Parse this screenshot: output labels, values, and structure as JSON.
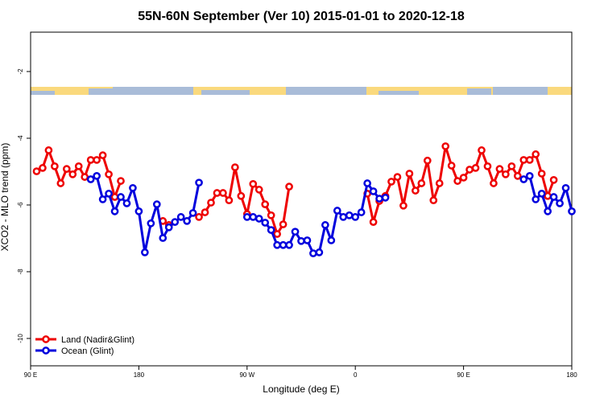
{
  "chart_data": {
    "type": "line",
    "title": "55N-60N September (Ver 10)   2015-01-01 to 2020-12-18",
    "x_label": "Longitude (deg E)",
    "y_label": "XCO2 - MLO trend (ppm)",
    "x": [
      95,
      100,
      105,
      110,
      115,
      120,
      125,
      130,
      135,
      140,
      145,
      150,
      155,
      160,
      165,
      170,
      175,
      180,
      185,
      190,
      195,
      200,
      205,
      210,
      215,
      220,
      225,
      230,
      235,
      240,
      245,
      250,
      255,
      260,
      265,
      270,
      275,
      280,
      285,
      290,
      295,
      300,
      305,
      310,
      315,
      320,
      325,
      330,
      335,
      340,
      345,
      350,
      355,
      360,
      365,
      370,
      375,
      380,
      385,
      390,
      395,
      400,
      405,
      410,
      415,
      420,
      425,
      430,
      435,
      440,
      445,
      450,
      455,
      460,
      465,
      470,
      475,
      480,
      485,
      490,
      495,
      500,
      505,
      510,
      515,
      520,
      525,
      530,
      535,
      540
    ],
    "series": [
      {
        "name": "Land (Nadir&Glint)",
        "color": "#ee0000",
        "values": [
          -4.99,
          -4.89,
          -4.36,
          -4.84,
          -5.35,
          -4.92,
          -5.08,
          -4.84,
          -5.16,
          -4.65,
          -4.65,
          -4.51,
          -5.08,
          -5.76,
          -5.28,
          null,
          null,
          null,
          null,
          null,
          null,
          -6.48,
          -6.6,
          null,
          null,
          null,
          null,
          -6.36,
          -6.22,
          -5.93,
          -5.64,
          -5.64,
          -5.86,
          -4.87,
          -5.73,
          -6.27,
          -5.37,
          -5.54,
          -5.98,
          -6.31,
          -6.87,
          -6.58,
          -5.45,
          null,
          null,
          null,
          null,
          null,
          null,
          null,
          null,
          null,
          null,
          null,
          null,
          -5.66,
          -6.51,
          -5.88,
          -5.73,
          -5.3,
          -5.16,
          -6.02,
          -5.06,
          -5.57,
          -5.35,
          -4.67,
          -5.86,
          -5.35,
          -4.24,
          -4.82,
          -5.28,
          -5.18,
          -4.94,
          -4.89,
          -4.36,
          -4.84,
          -5.35,
          -4.92,
          -5.08,
          -4.84,
          -5.13,
          -4.65,
          -4.65,
          -4.48,
          -5.06,
          -5.73,
          -5.25,
          null,
          null,
          null
        ]
      },
      {
        "name": "Ocean (Glint)",
        "color": "#0000dd",
        "values": [
          null,
          null,
          null,
          null,
          null,
          null,
          null,
          null,
          null,
          -5.23,
          -5.13,
          -5.83,
          -5.66,
          -6.19,
          -5.76,
          -5.95,
          -5.49,
          -6.19,
          -7.42,
          -6.55,
          -5.98,
          -6.99,
          -6.67,
          -6.51,
          -6.36,
          -6.48,
          -6.24,
          -5.33,
          null,
          null,
          null,
          null,
          null,
          null,
          null,
          -6.36,
          -6.36,
          -6.41,
          -6.53,
          -6.75,
          -7.2,
          -7.2,
          -7.2,
          -6.8,
          -7.08,
          -7.06,
          -7.45,
          -7.42,
          -6.6,
          -7.06,
          -6.17,
          -6.36,
          -6.31,
          -6.36,
          -6.22,
          -5.35,
          -5.59,
          -5.81,
          -5.78,
          null,
          null,
          null,
          null,
          null,
          null,
          null,
          null,
          null,
          null,
          null,
          null,
          null,
          null,
          null,
          null,
          null,
          null,
          null,
          null,
          null,
          null,
          -5.23,
          -5.13,
          -5.83,
          -5.66,
          -6.19,
          -5.76,
          -5.95,
          -5.49,
          -6.19
        ]
      }
    ],
    "xlim": [
      90,
      540
    ],
    "xticks": [
      {
        "value": 90,
        "label": "90 E"
      },
      180,
      {
        "value": 270,
        "label": "90 W"
      },
      {
        "value": 360,
        "label": "0"
      },
      {
        "value": 450,
        "label": "90 E"
      },
      {
        "value": 540,
        "label": "180"
      }
    ],
    "ylim": [
      -10.82,
      -0.82
    ],
    "yticks": [
      -2,
      -4,
      -6,
      -8,
      -10
    ],
    "legend": "bottom left",
    "grid": false
  }
}
